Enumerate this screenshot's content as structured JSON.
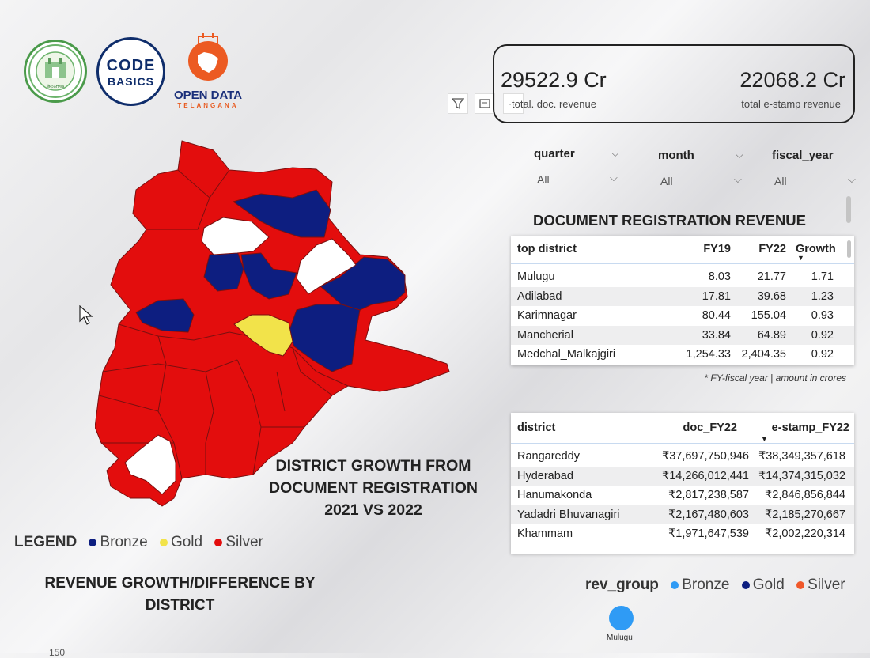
{
  "logos": {
    "codebasics_line1": "CODE",
    "codebasics_line2": "BASICS",
    "opendata_line1": "OPEN DATA",
    "opendata_line2": "TELANGANA"
  },
  "kpis": [
    {
      "value": "29522.9 Cr",
      "label": "total. doc. revenue"
    },
    {
      "value": "22068.2 Cr",
      "label": "total e-stamp revenue"
    }
  ],
  "slicers": [
    {
      "title": "quarter",
      "value": "All"
    },
    {
      "title": "month",
      "value": "All"
    },
    {
      "title": "fiscal_year",
      "value": "All"
    }
  ],
  "doc_reg": {
    "title": "DOCUMENT REGISTRATION REVENUE",
    "headers": [
      "top district",
      "FY19",
      "FY22",
      "Growth"
    ],
    "rows": [
      [
        "Mulugu",
        "8.03",
        "21.77",
        "1.71"
      ],
      [
        "Adilabad",
        "17.81",
        "39.68",
        "1.23"
      ],
      [
        "Karimnagar",
        "80.44",
        "155.04",
        "0.93"
      ],
      [
        "Mancherial",
        "33.84",
        "64.89",
        "0.92"
      ],
      [
        "Medchal_Malkajgiri",
        "1,254.33",
        "2,404.35",
        "0.92"
      ]
    ],
    "footnote": "* FY-fiscal year | amount in crores"
  },
  "district_table": {
    "headers": [
      "district",
      "doc_FY22",
      "e-stamp_FY22"
    ],
    "rows": [
      [
        "Rangareddy",
        "₹37,697,750,946",
        "₹38,349,357,618"
      ],
      [
        "Hyderabad",
        "₹14,266,012,441",
        "₹14,374,315,032"
      ],
      [
        "Hanumakonda",
        "₹2,817,238,587",
        "₹2,846,856,844"
      ],
      [
        "Yadadri Bhuvanagiri",
        "₹2,167,480,603",
        "₹2,185,270,667"
      ],
      [
        "Khammam",
        "₹1,971,647,539",
        "₹2,002,220,314"
      ]
    ]
  },
  "map": {
    "title_line1": "DISTRICT GROWTH FROM",
    "title_line2": "DOCUMENT REGISTRATION",
    "title_line3": "2021 VS 2022",
    "legend_title": "LEGEND",
    "legend": [
      {
        "label": "Bronze",
        "color": "#0d1e80"
      },
      {
        "label": "Gold",
        "color": "#f2e34a"
      },
      {
        "label": "Silver",
        "color": "#e30d0d"
      }
    ],
    "colors": {
      "red": "#e30d0d",
      "blue": "#0d1e80",
      "white": "#ffffff",
      "yellow": "#f2e34a"
    }
  },
  "revenue_chart": {
    "title_line1": "REVENUE GROWTH/DIFFERENCE BY",
    "title_line2": "DISTRICT",
    "axis_tick": "150"
  },
  "rev_group": {
    "title": "rev_group",
    "legend": [
      {
        "label": "Bronze",
        "color": "#2f9bf5"
      },
      {
        "label": "Gold",
        "color": "#0d1e80"
      },
      {
        "label": "Silver",
        "color": "#f0582a"
      }
    ],
    "point_label": "Mulugu",
    "point_color": "#2f9bf5"
  }
}
